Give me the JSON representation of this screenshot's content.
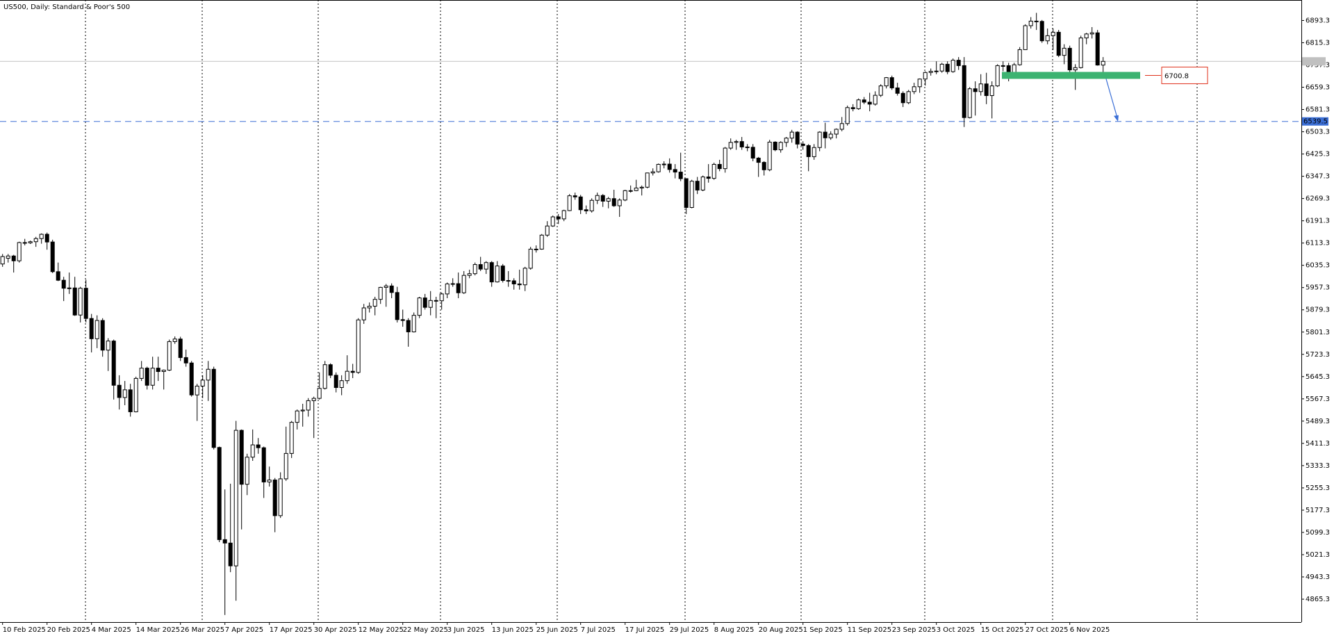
{
  "chart_data": {
    "type": "candlestick",
    "title": "US500, Daily:  Standard & Poor's 500",
    "x": [
      "10 Feb 2025",
      null,
      null,
      null,
      null,
      null,
      null,
      null,
      "20 Feb 2025",
      null,
      null,
      null,
      null,
      null,
      null,
      null,
      "4 Mar 2025",
      null,
      null,
      null,
      null,
      null,
      null,
      null,
      "14 Mar 2025",
      null,
      null,
      null,
      null,
      null,
      null,
      null,
      "26 Mar 2025",
      null,
      null,
      null,
      null,
      null,
      null,
      null,
      "7 Apr 2025",
      null,
      null,
      null,
      null,
      null,
      null,
      null,
      "17 Apr 2025",
      null,
      null,
      null,
      null,
      null,
      null,
      null,
      "30 Apr 2025",
      null,
      null,
      null,
      null,
      null,
      null,
      null,
      "12 May 2025",
      null,
      null,
      null,
      null,
      null,
      null,
      null,
      "22 May 2025",
      null,
      null,
      null,
      null,
      null,
      null,
      null,
      "3 Jun 2025",
      null,
      null,
      null,
      null,
      null,
      null,
      null,
      "13 Jun 2025",
      null,
      null,
      null,
      null,
      null,
      null,
      null,
      "25 Jun 2025",
      null,
      null,
      null,
      null,
      null,
      null,
      null,
      "7 Jul 2025",
      null,
      null,
      null,
      null,
      null,
      null,
      null,
      "17 Jul 2025",
      null,
      null,
      null,
      null,
      null,
      null,
      null,
      "29 Jul 2025",
      null,
      null,
      null,
      null,
      null,
      null,
      null,
      "8 Aug 2025",
      null,
      null,
      null,
      null,
      null,
      null,
      null,
      "20 Aug 2025",
      null,
      null,
      null,
      null,
      null,
      null,
      null,
      "1 Sep 2025",
      null,
      null,
      null,
      null,
      null,
      null,
      null,
      "11 Sep 2025",
      null,
      null,
      null,
      null,
      null,
      null,
      null,
      "23 Sep 2025",
      null,
      null,
      null,
      null,
      null,
      null,
      null,
      "3 Oct 2025",
      null,
      null,
      null,
      null,
      null,
      null,
      null,
      "15 Oct 2025",
      null,
      null,
      null,
      null,
      null,
      null,
      null,
      "27 Oct 2025",
      null,
      null,
      null,
      null,
      null,
      null,
      null,
      "6 Nov 2025",
      null,
      null,
      null,
      null,
      null,
      null
    ],
    "ohlc": [
      [
        6040,
        6075,
        6030,
        6066
      ],
      [
        6060,
        6075,
        6045,
        6068
      ],
      [
        6068,
        6072,
        6010,
        6051
      ],
      [
        6051,
        6118,
        6045,
        6115
      ],
      [
        6115,
        6128,
        6105,
        6114
      ],
      [
        6114,
        6122,
        6110,
        6118
      ],
      [
        6118,
        6135,
        6100,
        6129
      ],
      [
        6129,
        6147,
        6111,
        6144
      ],
      [
        6144,
        6150,
        6090,
        6117
      ],
      [
        6117,
        6125,
        6008,
        6013
      ],
      [
        6013,
        6045,
        5980,
        5983
      ],
      [
        5983,
        5995,
        5910,
        5955
      ],
      [
        5955,
        6010,
        5935,
        5956
      ],
      [
        5956,
        5995,
        5858,
        5861
      ],
      [
        5861,
        5960,
        5835,
        5955
      ],
      [
        5955,
        5985,
        5835,
        5849
      ],
      [
        5849,
        5865,
        5730,
        5778
      ],
      [
        5778,
        5860,
        5745,
        5842
      ],
      [
        5842,
        5850,
        5715,
        5738
      ],
      [
        5738,
        5780,
        5665,
        5770
      ],
      [
        5770,
        5775,
        5565,
        5615
      ],
      [
        5615,
        5650,
        5530,
        5572
      ],
      [
        5572,
        5630,
        5545,
        5599
      ],
      [
        5599,
        5620,
        5505,
        5522
      ],
      [
        5522,
        5645,
        5520,
        5639
      ],
      [
        5639,
        5700,
        5630,
        5675
      ],
      [
        5675,
        5680,
        5600,
        5615
      ],
      [
        5615,
        5715,
        5600,
        5675
      ],
      [
        5675,
        5715,
        5630,
        5663
      ],
      [
        5663,
        5670,
        5600,
        5668
      ],
      [
        5668,
        5775,
        5665,
        5768
      ],
      [
        5768,
        5786,
        5760,
        5777
      ],
      [
        5777,
        5785,
        5700,
        5712
      ],
      [
        5712,
        5740,
        5680,
        5693
      ],
      [
        5693,
        5700,
        5575,
        5581
      ],
      [
        5581,
        5620,
        5490,
        5612
      ],
      [
        5612,
        5650,
        5570,
        5633
      ],
      [
        5633,
        5700,
        5560,
        5671
      ],
      [
        5671,
        5680,
        5390,
        5397
      ],
      [
        5397,
        5400,
        5065,
        5074
      ],
      [
        5074,
        5250,
        4810,
        5062
      ],
      [
        5062,
        5270,
        4960,
        4982
      ],
      [
        4982,
        5490,
        4860,
        5457
      ],
      [
        5457,
        5460,
        5110,
        5268
      ],
      [
        5268,
        5375,
        5230,
        5363
      ],
      [
        5363,
        5460,
        5350,
        5406
      ],
      [
        5406,
        5430,
        5375,
        5396
      ],
      [
        5396,
        5400,
        5220,
        5276
      ],
      [
        5276,
        5330,
        5260,
        5283
      ],
      [
        5283,
        5290,
        5100,
        5158
      ],
      [
        5158,
        5310,
        5150,
        5287
      ],
      [
        5287,
        5470,
        5280,
        5376
      ],
      [
        5376,
        5490,
        5360,
        5485
      ],
      [
        5485,
        5530,
        5460,
        5525
      ],
      [
        5525,
        5550,
        5470,
        5528
      ],
      [
        5528,
        5570,
        5505,
        5561
      ],
      [
        5561,
        5575,
        5430,
        5569
      ],
      [
        5569,
        5660,
        5565,
        5604
      ],
      [
        5604,
        5700,
        5600,
        5687
      ],
      [
        5687,
        5692,
        5640,
        5650
      ],
      [
        5650,
        5660,
        5590,
        5607
      ],
      [
        5607,
        5650,
        5580,
        5631
      ],
      [
        5631,
        5720,
        5620,
        5664
      ],
      [
        5664,
        5690,
        5640,
        5660
      ],
      [
        5660,
        5850,
        5655,
        5844
      ],
      [
        5844,
        5900,
        5830,
        5886
      ],
      [
        5886,
        5905,
        5870,
        5892
      ],
      [
        5892,
        5925,
        5860,
        5916
      ],
      [
        5916,
        5960,
        5900,
        5958
      ],
      [
        5958,
        5970,
        5890,
        5963
      ],
      [
        5963,
        5972,
        5920,
        5940
      ],
      [
        5940,
        5960,
        5835,
        5845
      ],
      [
        5845,
        5880,
        5820,
        5842
      ],
      [
        5842,
        5850,
        5750,
        5802
      ],
      [
        5802,
        5870,
        5800,
        5860
      ],
      [
        5860,
        5925,
        5850,
        5921
      ],
      [
        5921,
        5935,
        5880,
        5888
      ],
      [
        5888,
        5945,
        5860,
        5912
      ],
      [
        5912,
        5925,
        5850,
        5911
      ],
      [
        5911,
        5940,
        5880,
        5935
      ],
      [
        5935,
        5975,
        5920,
        5970
      ],
      [
        5970,
        5990,
        5960,
        5971
      ],
      [
        5971,
        6010,
        5920,
        5939
      ],
      [
        5939,
        6015,
        5935,
        6000
      ],
      [
        6000,
        6020,
        5990,
        6006
      ],
      [
        6006,
        6045,
        6000,
        6038
      ],
      [
        6038,
        6065,
        6015,
        6022
      ],
      [
        6022,
        6050,
        6005,
        6045
      ],
      [
        6045,
        6050,
        5960,
        5977
      ],
      [
        5977,
        6050,
        5975,
        6033
      ],
      [
        6033,
        6040,
        5975,
        5982
      ],
      [
        5982,
        6015,
        5960,
        5981
      ],
      [
        5981,
        5990,
        5950,
        5970
      ],
      [
        5970,
        6020,
        5950,
        5967
      ],
      [
        5967,
        6030,
        5945,
        6025
      ],
      [
        6025,
        6100,
        6020,
        6092
      ],
      [
        6092,
        6105,
        6080,
        6092
      ],
      [
        6092,
        6145,
        6090,
        6141
      ],
      [
        6141,
        6190,
        6135,
        6173
      ],
      [
        6173,
        6210,
        6170,
        6205
      ],
      [
        6205,
        6215,
        6180,
        6198
      ],
      [
        6198,
        6230,
        6190,
        6227
      ],
      [
        6227,
        6285,
        6225,
        6279
      ],
      [
        6279,
        6290,
        6265,
        6275
      ],
      [
        6275,
        6282,
        6215,
        6230
      ],
      [
        6230,
        6245,
        6215,
        6226
      ],
      [
        6226,
        6270,
        6220,
        6263
      ],
      [
        6263,
        6290,
        6250,
        6280
      ],
      [
        6280,
        6285,
        6240,
        6260
      ],
      [
        6260,
        6275,
        6235,
        6269
      ],
      [
        6269,
        6300,
        6240,
        6244
      ],
      [
        6244,
        6270,
        6205,
        6264
      ],
      [
        6264,
        6300,
        6260,
        6297
      ],
      [
        6297,
        6315,
        6290,
        6297
      ],
      [
        6297,
        6335,
        6295,
        6306
      ],
      [
        6306,
        6315,
        6280,
        6309
      ],
      [
        6309,
        6360,
        6305,
        6359
      ],
      [
        6359,
        6375,
        6350,
        6363
      ],
      [
        6363,
        6392,
        6360,
        6389
      ],
      [
        6389,
        6400,
        6375,
        6390
      ],
      [
        6390,
        6410,
        6360,
        6371
      ],
      [
        6371,
        6390,
        6340,
        6362
      ],
      [
        6362,
        6430,
        6330,
        6339
      ],
      [
        6339,
        6340,
        6215,
        6238
      ],
      [
        6238,
        6335,
        6235,
        6330
      ],
      [
        6330,
        6345,
        6285,
        6299
      ],
      [
        6299,
        6350,
        6295,
        6345
      ],
      [
        6345,
        6390,
        6325,
        6340
      ],
      [
        6340,
        6395,
        6335,
        6389
      ],
      [
        6389,
        6405,
        6365,
        6374
      ],
      [
        6374,
        6450,
        6360,
        6446
      ],
      [
        6446,
        6480,
        6440,
        6466
      ],
      [
        6466,
        6475,
        6440,
        6469
      ],
      [
        6469,
        6485,
        6440,
        6450
      ],
      [
        6450,
        6460,
        6435,
        6449
      ],
      [
        6449,
        6460,
        6400,
        6411
      ],
      [
        6411,
        6415,
        6345,
        6396
      ],
      [
        6396,
        6400,
        6350,
        6370
      ],
      [
        6370,
        6475,
        6365,
        6467
      ],
      [
        6467,
        6470,
        6435,
        6440
      ],
      [
        6440,
        6470,
        6430,
        6466
      ],
      [
        6466,
        6485,
        6450,
        6481
      ],
      [
        6481,
        6510,
        6465,
        6502
      ],
      [
        6502,
        6505,
        6445,
        6460
      ],
      [
        6460,
        6470,
        6440,
        6455
      ],
      [
        6455,
        6460,
        6365,
        6416
      ],
      [
        6416,
        6460,
        6405,
        6448
      ],
      [
        6448,
        6505,
        6435,
        6502
      ],
      [
        6502,
        6535,
        6445,
        6482
      ],
      [
        6482,
        6505,
        6475,
        6495
      ],
      [
        6495,
        6515,
        6480,
        6512
      ],
      [
        6512,
        6555,
        6505,
        6532
      ],
      [
        6532,
        6595,
        6525,
        6588
      ],
      [
        6588,
        6600,
        6575,
        6584
      ],
      [
        6584,
        6620,
        6580,
        6615
      ],
      [
        6615,
        6625,
        6600,
        6607
      ],
      [
        6607,
        6640,
        6575,
        6600
      ],
      [
        6600,
        6645,
        6595,
        6631
      ],
      [
        6631,
        6670,
        6625,
        6664
      ],
      [
        6664,
        6695,
        6655,
        6693
      ],
      [
        6693,
        6700,
        6650,
        6657
      ],
      [
        6657,
        6675,
        6630,
        6638
      ],
      [
        6638,
        6645,
        6590,
        6605
      ],
      [
        6605,
        6650,
        6600,
        6644
      ],
      [
        6644,
        6675,
        6635,
        6661
      ],
      [
        6661,
        6690,
        6640,
        6688
      ],
      [
        6688,
        6715,
        6665,
        6711
      ],
      [
        6711,
        6725,
        6700,
        6715
      ],
      [
        6715,
        6750,
        6705,
        6716
      ],
      [
        6716,
        6745,
        6710,
        6740
      ],
      [
        6740,
        6750,
        6705,
        6714
      ],
      [
        6714,
        6760,
        6710,
        6754
      ],
      [
        6754,
        6765,
        6720,
        6735
      ],
      [
        6735,
        6765,
        6520,
        6553
      ],
      [
        6553,
        6660,
        6550,
        6654
      ],
      [
        6654,
        6680,
        6560,
        6644
      ],
      [
        6644,
        6705,
        6630,
        6671
      ],
      [
        6671,
        6710,
        6600,
        6630
      ],
      [
        6630,
        6680,
        6550,
        6664
      ],
      [
        6664,
        6740,
        6660,
        6735
      ],
      [
        6735,
        6750,
        6715,
        6735
      ],
      [
        6735,
        6745,
        6680,
        6699
      ],
      [
        6699,
        6745,
        6690,
        6738
      ],
      [
        6738,
        6800,
        6735,
        6791
      ],
      [
        6791,
        6880,
        6790,
        6875
      ],
      [
        6875,
        6905,
        6865,
        6891
      ],
      [
        6891,
        6920,
        6860,
        6890
      ],
      [
        6890,
        6895,
        6815,
        6822
      ],
      [
        6822,
        6865,
        6810,
        6840
      ],
      [
        6840,
        6865,
        6790,
        6852
      ],
      [
        6852,
        6860,
        6765,
        6771
      ],
      [
        6771,
        6810,
        6740,
        6796
      ],
      [
        6796,
        6805,
        6705,
        6720
      ],
      [
        6720,
        6740,
        6650,
        6728
      ],
      [
        6728,
        6840,
        6725,
        6832
      ],
      [
        6832,
        6850,
        6810,
        6846
      ],
      [
        6846,
        6870,
        6830,
        6850
      ],
      [
        6850,
        6860,
        6735,
        6737
      ],
      [
        6737,
        6765,
        6700,
        6750
      ]
    ],
    "ylim": [
      4785,
      6965
    ],
    "yticks": [
      6893.3,
      6815.3,
      6737.3,
      6659.3,
      6581.3,
      6503.3,
      6425.3,
      6347.3,
      6269.3,
      6191.3,
      6113.3,
      6035.3,
      5957.3,
      5879.3,
      5801.3,
      5723.3,
      5645.3,
      5567.3,
      5489.3,
      5411.3,
      5333.3,
      5255.3,
      5177.3,
      5099.3,
      5021.3,
      4943.3,
      4865.3
    ],
    "level": {
      "value": 6539.5,
      "color": "#3b6fd6"
    },
    "zone": {
      "value": 6700.8,
      "color": "#3cb371",
      "label_color": "#e0311b"
    }
  }
}
